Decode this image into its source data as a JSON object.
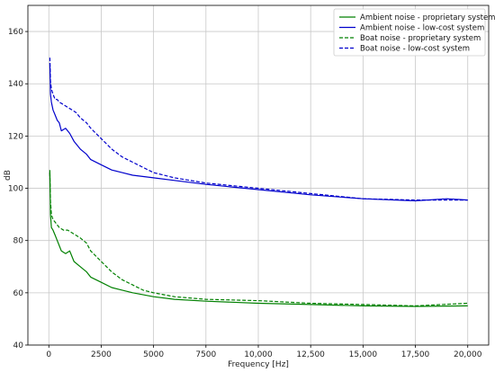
{
  "chart_data": {
    "type": "line",
    "xlabel": "Frequency [Hz]",
    "ylabel": "dB",
    "xlim": [
      -1000,
      21000
    ],
    "ylim": [
      40,
      170
    ],
    "xticks": [
      0,
      2500,
      5000,
      7500,
      10000,
      12500,
      15000,
      17500,
      20000
    ],
    "xtick_labels": [
      "0",
      "2500",
      "5000",
      "7500",
      "10,000",
      "12,500",
      "15,000",
      "17,500",
      "20,000"
    ],
    "yticks": [
      40,
      60,
      80,
      100,
      120,
      140,
      160
    ],
    "ytick_labels": [
      "40",
      "60",
      "80",
      "100",
      "120",
      "140",
      "160"
    ],
    "grid": true,
    "legend_position": "top-right",
    "series": [
      {
        "name": "Ambient noise - proprietary system",
        "color": "#008000",
        "dash": "solid",
        "points": [
          [
            50,
            107
          ],
          [
            80,
            90
          ],
          [
            120,
            85
          ],
          [
            200,
            84
          ],
          [
            300,
            82
          ],
          [
            400,
            80
          ],
          [
            500,
            78
          ],
          [
            600,
            76
          ],
          [
            800,
            75
          ],
          [
            1000,
            76
          ],
          [
            1200,
            72
          ],
          [
            1500,
            70
          ],
          [
            1800,
            68
          ],
          [
            2000,
            66
          ],
          [
            2500,
            64
          ],
          [
            3000,
            62
          ],
          [
            3500,
            61
          ],
          [
            4000,
            60
          ],
          [
            5000,
            58.5
          ],
          [
            6000,
            57.5
          ],
          [
            7500,
            56.8
          ],
          [
            10000,
            56
          ],
          [
            12500,
            55.5
          ],
          [
            15000,
            55
          ],
          [
            17500,
            54.8
          ],
          [
            20000,
            55
          ]
        ]
      },
      {
        "name": "Ambient noise - low-cost system",
        "color": "#0000cc",
        "dash": "solid",
        "points": [
          [
            50,
            148
          ],
          [
            80,
            136
          ],
          [
            120,
            133
          ],
          [
            200,
            130
          ],
          [
            300,
            128
          ],
          [
            400,
            126
          ],
          [
            500,
            125
          ],
          [
            600,
            122
          ],
          [
            800,
            123
          ],
          [
            1000,
            121
          ],
          [
            1200,
            118
          ],
          [
            1500,
            115
          ],
          [
            1800,
            113
          ],
          [
            2000,
            111
          ],
          [
            2500,
            109
          ],
          [
            3000,
            107
          ],
          [
            3500,
            106
          ],
          [
            4000,
            105
          ],
          [
            5000,
            104
          ],
          [
            6000,
            103
          ],
          [
            7500,
            101.5
          ],
          [
            10000,
            99.5
          ],
          [
            12500,
            97.5
          ],
          [
            15000,
            96
          ],
          [
            17500,
            95.2
          ],
          [
            19000,
            96
          ],
          [
            20000,
            95.5
          ]
        ]
      },
      {
        "name": "Boat noise - proprietary system",
        "color": "#008000",
        "dash": "dashed",
        "points": [
          [
            50,
            106
          ],
          [
            80,
            95
          ],
          [
            120,
            90
          ],
          [
            200,
            88
          ],
          [
            300,
            87
          ],
          [
            400,
            86
          ],
          [
            500,
            85
          ],
          [
            700,
            84
          ],
          [
            900,
            84
          ],
          [
            1100,
            83
          ],
          [
            1300,
            82
          ],
          [
            1500,
            81
          ],
          [
            1800,
            79
          ],
          [
            2000,
            76
          ],
          [
            2500,
            72
          ],
          [
            3000,
            68
          ],
          [
            3500,
            65
          ],
          [
            4000,
            63
          ],
          [
            4500,
            61
          ],
          [
            5000,
            60
          ],
          [
            6000,
            58.5
          ],
          [
            7500,
            57.5
          ],
          [
            10000,
            57
          ],
          [
            12500,
            56
          ],
          [
            15000,
            55.5
          ],
          [
            17500,
            55
          ],
          [
            20000,
            56
          ]
        ]
      },
      {
        "name": "Boat noise - low-cost system",
        "color": "#0000cc",
        "dash": "dashed",
        "points": [
          [
            50,
            150
          ],
          [
            80,
            141
          ],
          [
            120,
            138
          ],
          [
            200,
            136
          ],
          [
            300,
            134
          ],
          [
            400,
            134
          ],
          [
            500,
            133
          ],
          [
            700,
            132
          ],
          [
            900,
            131
          ],
          [
            1100,
            130
          ],
          [
            1300,
            129
          ],
          [
            1500,
            127
          ],
          [
            1800,
            125
          ],
          [
            2000,
            123
          ],
          [
            2500,
            119
          ],
          [
            3000,
            115
          ],
          [
            3500,
            112
          ],
          [
            4000,
            110
          ],
          [
            4500,
            108
          ],
          [
            5000,
            106
          ],
          [
            6000,
            104
          ],
          [
            7500,
            102
          ],
          [
            10000,
            100
          ],
          [
            12500,
            98
          ],
          [
            15000,
            96
          ],
          [
            17500,
            95.5
          ],
          [
            20000,
            95.5
          ]
        ]
      }
    ]
  }
}
